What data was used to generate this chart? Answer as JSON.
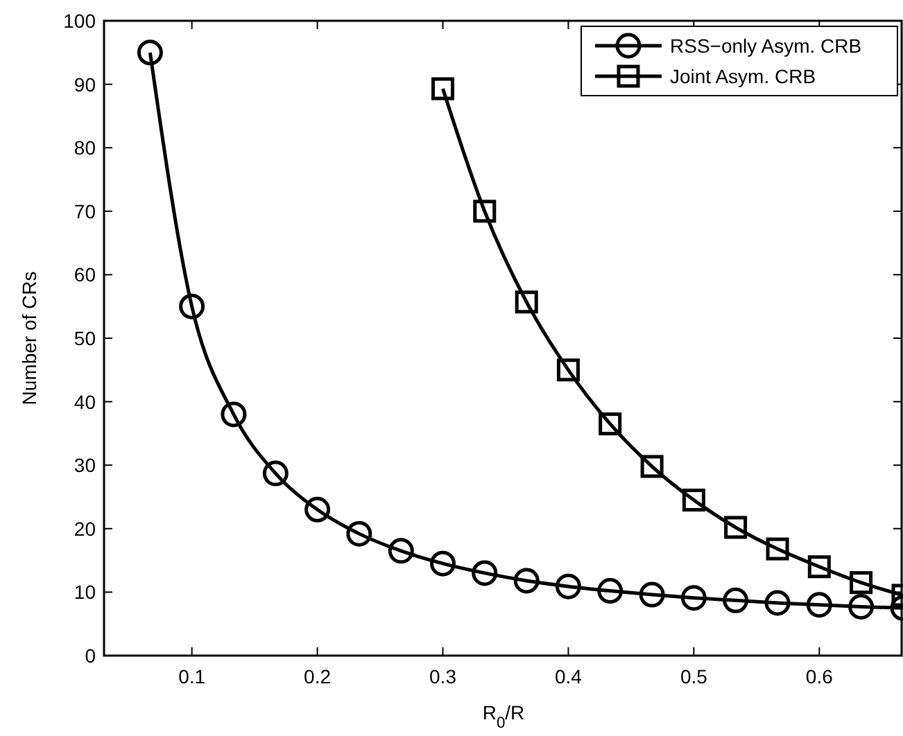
{
  "chart_data": {
    "type": "line",
    "xlabel": "R$_{0}$/R",
    "ylabel": "Number of CRs",
    "xlim": [
      0.03,
      0.6667
    ],
    "xticks": [
      0.1,
      0.2,
      0.3,
      0.4,
      0.5,
      0.6
    ],
    "ylim": [
      0,
      100
    ],
    "yticks": [
      0,
      10,
      20,
      30,
      40,
      50,
      60,
      70,
      80,
      90,
      100
    ],
    "grid": false,
    "legend": "top right",
    "line_style": "solid",
    "series": [
      {
        "name": "RSS−only Asym. CRB",
        "color": "#000000",
        "marker": "circle",
        "x": [
          0.0667,
          0.1,
          0.1333,
          0.1667,
          0.2,
          0.2333,
          0.2667,
          0.3,
          0.3333,
          0.3667,
          0.4,
          0.4333,
          0.4667,
          0.5,
          0.5333,
          0.5667,
          0.6,
          0.6333,
          0.6667
        ],
        "values": [
          95,
          55,
          38,
          28.7,
          23,
          19.2,
          16.5,
          14.5,
          13,
          11.8,
          10.9,
          10.2,
          9.6,
          9.1,
          8.7,
          8.3,
          8.0,
          7.7,
          7.5
        ]
      },
      {
        "name": "Joint Asym. CRB",
        "color": "#000000",
        "marker": "square",
        "x": [
          0.3,
          0.3333,
          0.3667,
          0.4,
          0.4333,
          0.4667,
          0.5,
          0.5333,
          0.5667,
          0.6,
          0.6333,
          0.6667
        ],
        "values": [
          89.3,
          70,
          55.7,
          45,
          36.5,
          29.8,
          24.5,
          20.2,
          16.8,
          14,
          11.5,
          9.5
        ]
      }
    ]
  }
}
